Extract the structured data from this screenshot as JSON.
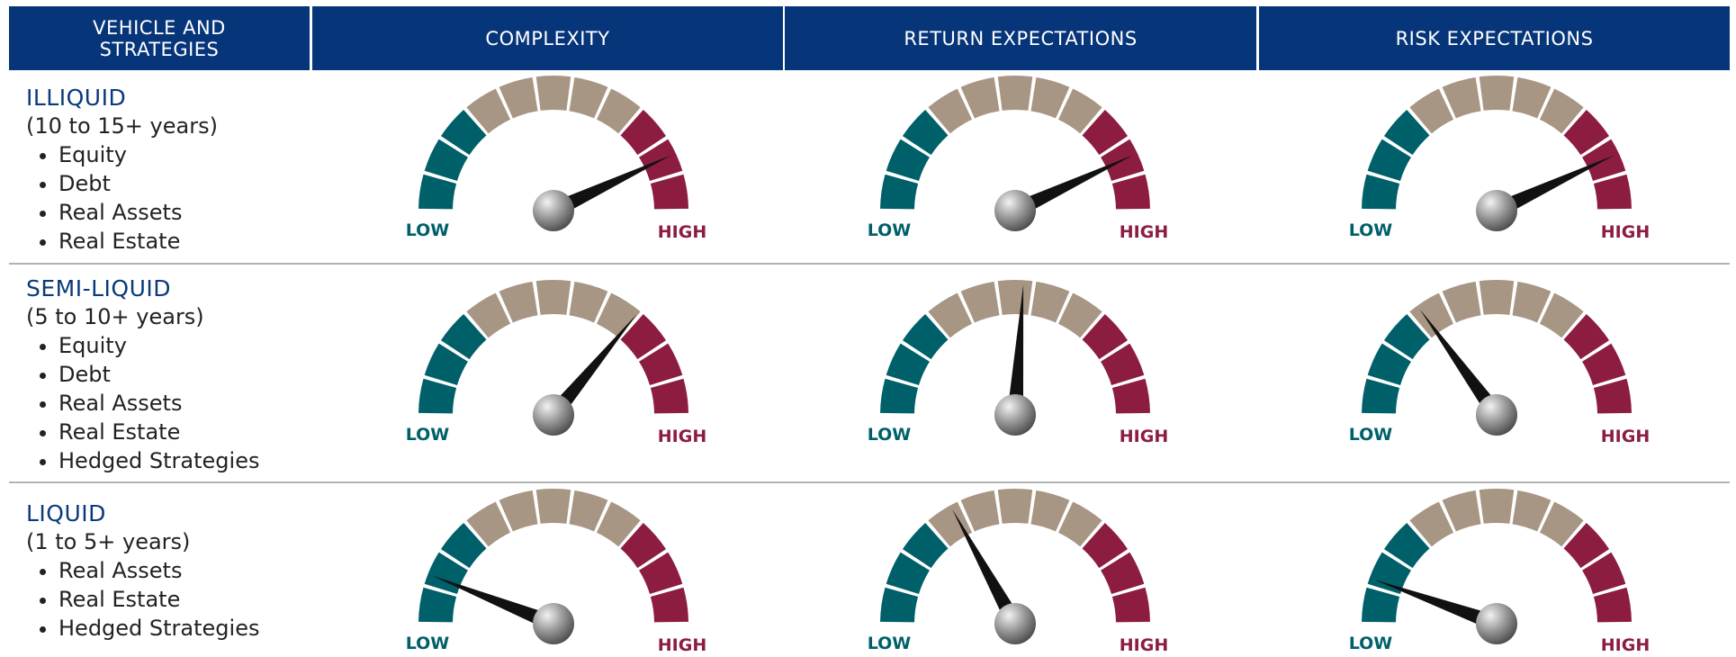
{
  "header": [
    "VEHICLE AND STRATEGIES",
    "COMPLEXITY",
    "RETURN EXPECTATIONS",
    "RISK EXPECTATIONS"
  ],
  "rows": [
    {
      "title": "ILLIQUID",
      "subtitle": "(10 to 15+ years)",
      "items": [
        "Equity",
        "Debt",
        "Real Assets",
        "Real Estate"
      ],
      "gauges": [
        {
          "low": "LOW",
          "high": "HIGH",
          "level": 86
        },
        {
          "low": "LOW",
          "high": "HIGH",
          "level": 86
        },
        {
          "low": "LOW",
          "high": "HIGH",
          "level": 86
        }
      ]
    },
    {
      "title": "SEMI-LIQUID",
      "subtitle": "(5 to 10+ years)",
      "items": [
        "Equity",
        "Debt",
        "Real Assets",
        "Real Estate",
        "Hedged Strategies"
      ],
      "gauges": [
        {
          "low": "LOW",
          "high": "HIGH",
          "level": 72
        },
        {
          "low": "LOW",
          "high": "HIGH",
          "level": 52
        },
        {
          "low": "LOW",
          "high": "HIGH",
          "level": 30
        }
      ]
    },
    {
      "title": "LIQUID",
      "subtitle": "(1 to 5+ years)",
      "items": [
        "Real Assets",
        "Real Estate",
        "Hedged Strategies"
      ],
      "gauges": [
        {
          "low": "LOW",
          "high": "HIGH",
          "level": 12
        },
        {
          "low": "LOW",
          "high": "HIGH",
          "level": 34
        },
        {
          "low": "LOW",
          "high": "HIGH",
          "level": 11
        }
      ]
    }
  ]
}
